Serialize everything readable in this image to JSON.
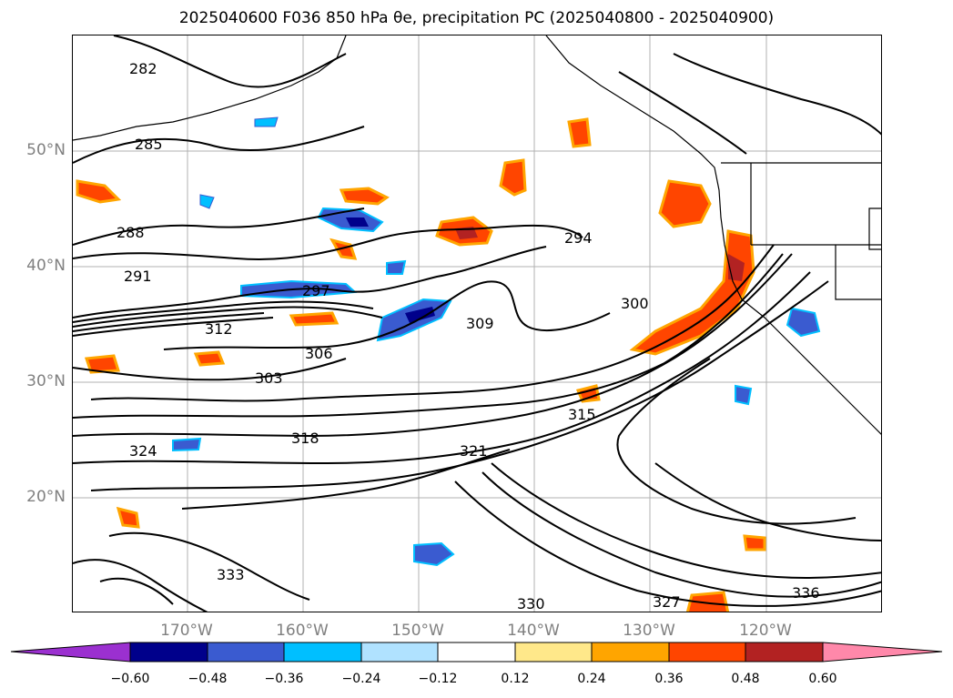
{
  "title": "2025040600 F036 850 hPa θe, precipitation PC (2025040800 - 2025040900)",
  "map": {
    "lat_labels": [
      "50°N",
      "40°N",
      "30°N",
      "20°N"
    ],
    "lon_labels": [
      "170°W",
      "160°W",
      "150°W",
      "140°W",
      "130°W",
      "120°W"
    ],
    "contour_labels": [
      "282",
      "285",
      "288",
      "291",
      "294",
      "297",
      "300",
      "303",
      "306",
      "309",
      "312",
      "315",
      "318",
      "321",
      "324",
      "327",
      "330",
      "333",
      "336"
    ]
  },
  "colorbar": {
    "ticks": [
      "−0.60",
      "−0.48",
      "−0.36",
      "−0.24",
      "−0.12",
      "0.12",
      "0.24",
      "0.36",
      "0.48",
      "0.60"
    ],
    "colors": [
      "#9b30d0",
      "#00008b",
      "#3a5bd0",
      "#00bfff",
      "#b0e2ff",
      "#ffffff",
      "#ffe88a",
      "#ffa500",
      "#ff4500",
      "#b22222",
      "#ff88aa"
    ]
  }
}
